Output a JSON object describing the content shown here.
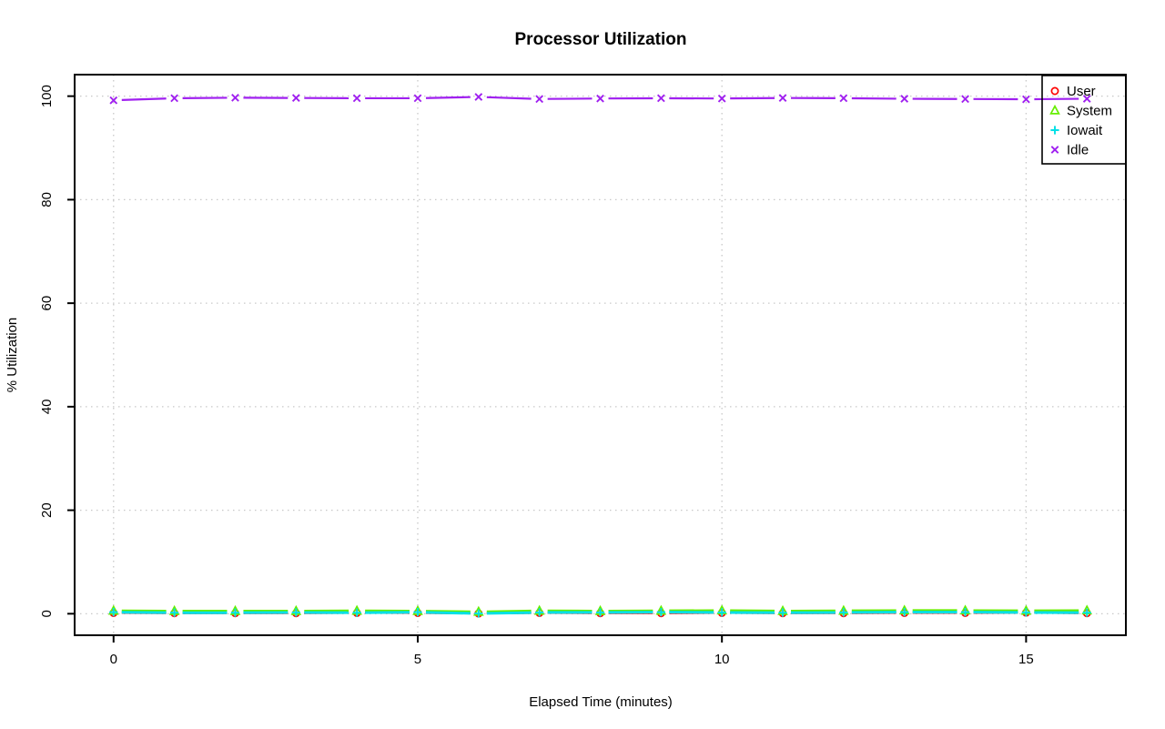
{
  "chart_data": {
    "type": "line",
    "title": "Processor Utilization",
    "xlabel": "Elapsed Time (minutes)",
    "ylabel": "% Utilization",
    "x": [
      0,
      1,
      2,
      3,
      4,
      5,
      6,
      7,
      8,
      9,
      10,
      11,
      12,
      13,
      14,
      15,
      16
    ],
    "series": [
      {
        "name": "User",
        "color": "#FF0000",
        "marker": "circle",
        "line_style": "solid",
        "values": [
          0.15,
          0.1,
          0.1,
          0.1,
          0.15,
          0.15,
          0.05,
          0.15,
          0.1,
          0.1,
          0.15,
          0.1,
          0.1,
          0.15,
          0.15,
          0.2,
          0.1
        ]
      },
      {
        "name": "System",
        "color": "#66EE00",
        "marker": "triangle",
        "line_style": "solid",
        "values": [
          0.55,
          0.5,
          0.5,
          0.5,
          0.55,
          0.5,
          0.35,
          0.55,
          0.5,
          0.55,
          0.6,
          0.5,
          0.55,
          0.6,
          0.6,
          0.55,
          0.6
        ]
      },
      {
        "name": "Iowait",
        "color": "#00E0E6",
        "marker": "plus",
        "line_style": "solid",
        "values": [
          0.3,
          0.2,
          0.2,
          0.25,
          0.2,
          0.3,
          0.05,
          0.25,
          0.25,
          0.3,
          0.25,
          0.2,
          0.25,
          0.3,
          0.3,
          0.25,
          0.2
        ]
      },
      {
        "name": "Idle",
        "color": "#A020F0",
        "marker": "x",
        "line_style": "solid",
        "values": [
          99.2,
          99.6,
          99.7,
          99.65,
          99.6,
          99.6,
          99.85,
          99.45,
          99.55,
          99.6,
          99.55,
          99.65,
          99.6,
          99.5,
          99.45,
          99.4,
          99.5
        ]
      }
    ],
    "xticks": [
      "0",
      "5",
      "10",
      "15"
    ],
    "xtick_values": [
      0,
      5,
      10,
      15
    ],
    "yticks": [
      "0",
      "20",
      "40",
      "60",
      "80",
      "100"
    ],
    "ytick_values": [
      0,
      20,
      40,
      60,
      80,
      100
    ],
    "xlim": [
      -0.64,
      16.64
    ],
    "ylim": [
      -4.16,
      104.16
    ],
    "grid": {
      "color": "#c8c8c8",
      "style": "dotted"
    },
    "legend": {
      "position": "top-right",
      "items": [
        "User",
        "System",
        "Iowait",
        "Idle"
      ]
    },
    "axis_color": "#000000",
    "background_color": "#ffffff"
  }
}
